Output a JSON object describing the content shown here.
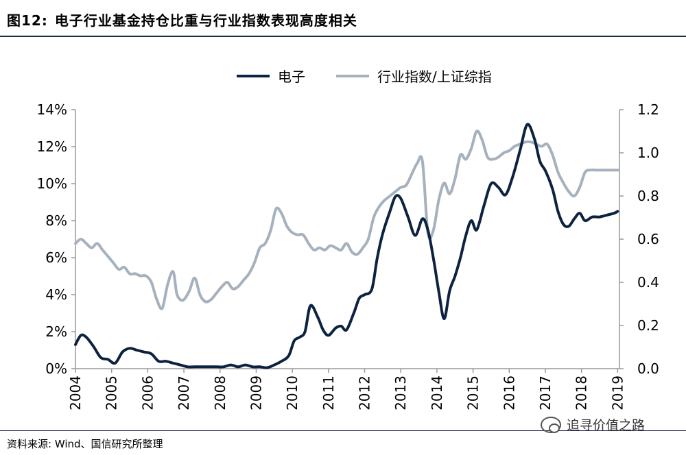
{
  "title_prefix": "图12:",
  "title": "电子行业基金持仓比重与行业指数表现高度相关",
  "source": "资料来源: Wind、国信研究所整理",
  "watermark": "追寻价值之路",
  "chart_data": {
    "type": "line",
    "title": "电子行业基金持仓比重与行业指数表现高度相关",
    "x_ticks": [
      "2004",
      "2005",
      "2006",
      "2007",
      "2008",
      "2009",
      "2010",
      "2011",
      "2012",
      "2013",
      "2014",
      "2015",
      "2016",
      "2017",
      "2018",
      "2019"
    ],
    "left_axis": {
      "ylim": [
        0,
        0.14
      ],
      "ticks": [
        "0%",
        "2%",
        "4%",
        "6%",
        "8%",
        "10%",
        "12%",
        "14%"
      ]
    },
    "right_axis": {
      "ylim": [
        0,
        1.2
      ],
      "ticks": [
        "0.0",
        "0.2",
        "0.4",
        "0.6",
        "0.8",
        "1.0",
        "1.2"
      ]
    },
    "legend_position": "top-center",
    "series": [
      {
        "name": "电子",
        "axis": "left",
        "color": "#0d2240",
        "x": [
          2004.0,
          2004.15,
          2004.3,
          2004.5,
          2004.7,
          2004.9,
          2005.1,
          2005.3,
          2005.5,
          2005.7,
          2005.9,
          2006.1,
          2006.3,
          2006.5,
          2006.7,
          2006.9,
          2007.1,
          2007.3,
          2007.5,
          2007.7,
          2007.9,
          2008.1,
          2008.3,
          2008.5,
          2008.7,
          2008.9,
          2009.1,
          2009.3,
          2009.5,
          2009.7,
          2009.9,
          2010.05,
          2010.2,
          2010.35,
          2010.5,
          2010.7,
          2010.85,
          2011.0,
          2011.2,
          2011.35,
          2011.5,
          2011.7,
          2011.85,
          2012.0,
          2012.2,
          2012.35,
          2012.5,
          2012.7,
          2012.85,
          2013.0,
          2013.2,
          2013.4,
          2013.6,
          2013.75,
          2013.9,
          2014.05,
          2014.2,
          2014.35,
          2014.5,
          2014.65,
          2014.8,
          2014.95,
          2015.1,
          2015.3,
          2015.5,
          2015.7,
          2015.9,
          2016.1,
          2016.3,
          2016.5,
          2016.7,
          2016.85,
          2017.0,
          2017.2,
          2017.35,
          2017.5,
          2017.65,
          2017.8,
          2017.95,
          2018.1,
          2018.3,
          2018.5,
          2018.7,
          2018.9,
          2019.0
        ],
        "values": [
          0.013,
          0.018,
          0.017,
          0.012,
          0.006,
          0.005,
          0.003,
          0.009,
          0.011,
          0.01,
          0.009,
          0.008,
          0.004,
          0.004,
          0.003,
          0.002,
          0.001,
          0.001,
          0.001,
          0.001,
          0.001,
          0.001,
          0.002,
          0.001,
          0.002,
          0.001,
          0.001,
          0.0005,
          0.002,
          0.004,
          0.007,
          0.015,
          0.017,
          0.02,
          0.034,
          0.028,
          0.021,
          0.018,
          0.022,
          0.023,
          0.021,
          0.03,
          0.038,
          0.04,
          0.043,
          0.06,
          0.073,
          0.085,
          0.093,
          0.092,
          0.082,
          0.072,
          0.081,
          0.075,
          0.06,
          0.042,
          0.027,
          0.042,
          0.05,
          0.06,
          0.072,
          0.08,
          0.075,
          0.088,
          0.1,
          0.098,
          0.094,
          0.104,
          0.118,
          0.132,
          0.124,
          0.112,
          0.107,
          0.097,
          0.085,
          0.078,
          0.077,
          0.081,
          0.084,
          0.08,
          0.082,
          0.082,
          0.083,
          0.084,
          0.085
        ]
      },
      {
        "name": "行业指数/上证综指",
        "axis": "right",
        "color": "#a5b1bc",
        "x": [
          2004.0,
          2004.15,
          2004.3,
          2004.45,
          2004.6,
          2004.75,
          2004.9,
          2005.05,
          2005.2,
          2005.35,
          2005.5,
          2005.65,
          2005.8,
          2005.95,
          2006.1,
          2006.25,
          2006.4,
          2006.55,
          2006.7,
          2006.8,
          2006.9,
          2007.0,
          2007.15,
          2007.3,
          2007.45,
          2007.6,
          2007.75,
          2007.9,
          2008.05,
          2008.2,
          2008.35,
          2008.5,
          2008.65,
          2008.8,
          2008.95,
          2009.1,
          2009.25,
          2009.4,
          2009.55,
          2009.7,
          2009.85,
          2010.0,
          2010.15,
          2010.3,
          2010.45,
          2010.6,
          2010.75,
          2010.9,
          2011.05,
          2011.2,
          2011.35,
          2011.5,
          2011.65,
          2011.8,
          2011.95,
          2012.1,
          2012.25,
          2012.4,
          2012.55,
          2012.7,
          2012.85,
          2013.0,
          2013.15,
          2013.3,
          2013.45,
          2013.6,
          2013.75,
          2013.9,
          2014.05,
          2014.2,
          2014.35,
          2014.5,
          2014.65,
          2014.8,
          2014.95,
          2015.1,
          2015.25,
          2015.4,
          2015.55,
          2015.7,
          2015.85,
          2016.0,
          2016.15,
          2016.3,
          2016.45,
          2016.6,
          2016.75,
          2016.9,
          2017.05,
          2017.2,
          2017.35,
          2017.5,
          2017.65,
          2017.8,
          2017.95,
          2018.1,
          2018.25,
          2018.4,
          2018.55,
          2018.7,
          2018.85,
          2019.0
        ],
        "values": [
          0.58,
          0.6,
          0.58,
          0.56,
          0.58,
          0.55,
          0.52,
          0.49,
          0.46,
          0.47,
          0.44,
          0.44,
          0.43,
          0.43,
          0.4,
          0.32,
          0.28,
          0.39,
          0.45,
          0.35,
          0.32,
          0.32,
          0.36,
          0.42,
          0.34,
          0.31,
          0.32,
          0.35,
          0.38,
          0.4,
          0.37,
          0.38,
          0.41,
          0.44,
          0.49,
          0.56,
          0.58,
          0.64,
          0.74,
          0.72,
          0.66,
          0.63,
          0.62,
          0.62,
          0.58,
          0.55,
          0.56,
          0.55,
          0.57,
          0.56,
          0.55,
          0.58,
          0.54,
          0.53,
          0.56,
          0.6,
          0.7,
          0.75,
          0.78,
          0.8,
          0.82,
          0.84,
          0.85,
          0.9,
          0.95,
          0.96,
          0.63,
          0.64,
          0.78,
          0.86,
          0.81,
          0.88,
          0.99,
          0.97,
          1.02,
          1.1,
          1.06,
          0.98,
          0.97,
          0.98,
          1.0,
          1.01,
          1.03,
          1.04,
          1.05,
          1.05,
          1.04,
          1.03,
          1.04,
          0.99,
          0.91,
          0.86,
          0.82,
          0.8,
          0.84,
          0.91,
          0.92,
          0.92,
          0.92,
          0.92,
          0.92,
          0.92
        ]
      }
    ]
  }
}
